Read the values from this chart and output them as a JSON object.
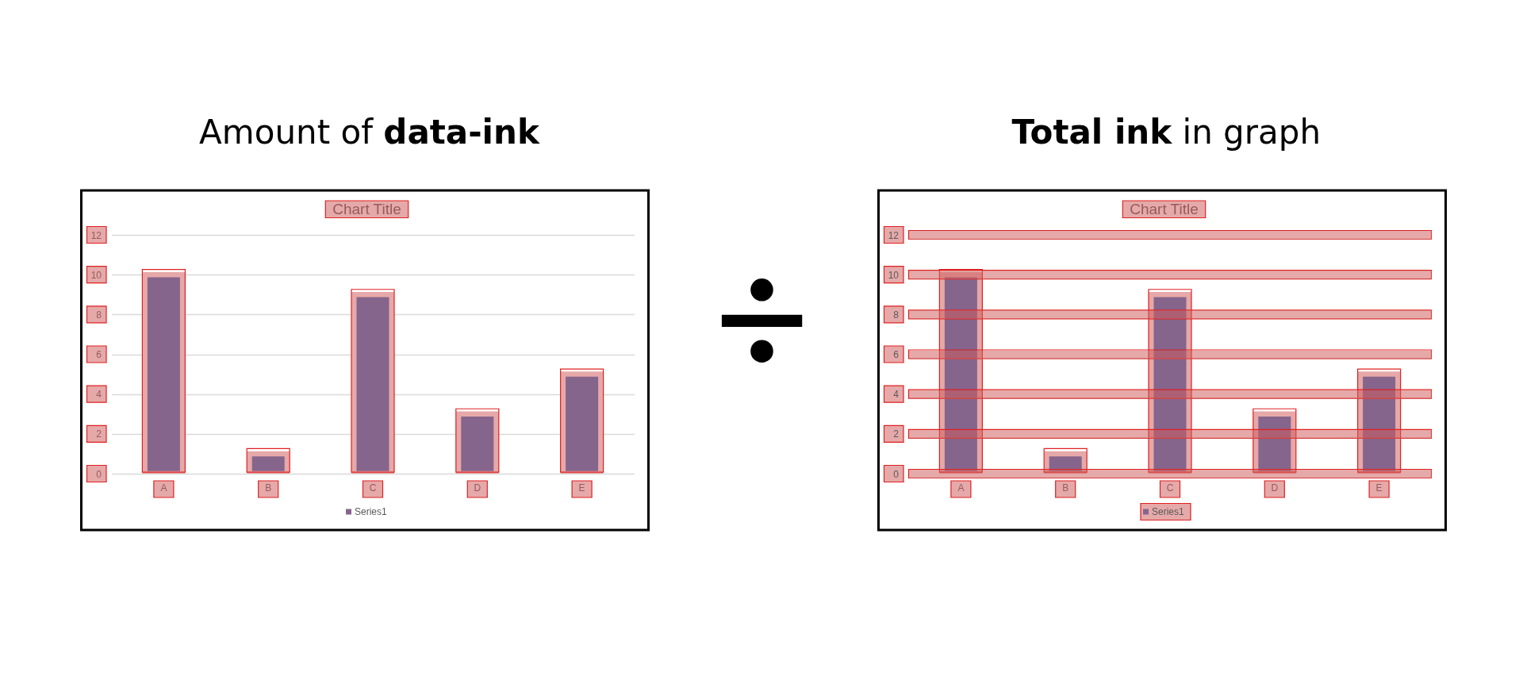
{
  "chart_data": [
    {
      "type": "bar",
      "title": "Amount of data-ink",
      "subtitle": "Chart Title",
      "categories": [
        "A",
        "B",
        "C",
        "D",
        "E"
      ],
      "series": [
        {
          "name": "Series1",
          "color": "#86658c",
          "values": [
            10,
            1,
            9,
            3,
            5
          ]
        }
      ],
      "ylim": [
        0,
        12
      ],
      "yticks": [
        0,
        2,
        4,
        6,
        8,
        10,
        12
      ],
      "grid": "y",
      "legend": "bottom"
    },
    {
      "type": "other",
      "annotations": [
        "÷"
      ]
    },
    {
      "type": "bar",
      "title": "Total ink in graph",
      "subtitle": "Chart Title",
      "categories": [
        "A",
        "B",
        "C",
        "D",
        "E"
      ],
      "series": [
        {
          "name": "Series1",
          "color": "#86658c",
          "values": [
            10,
            1,
            9,
            3,
            5
          ]
        }
      ],
      "ylim": [
        0,
        12
      ],
      "yticks": [
        0,
        2,
        4,
        6,
        8,
        10,
        12
      ],
      "grid": "y",
      "legend": "bottom"
    }
  ]
}
